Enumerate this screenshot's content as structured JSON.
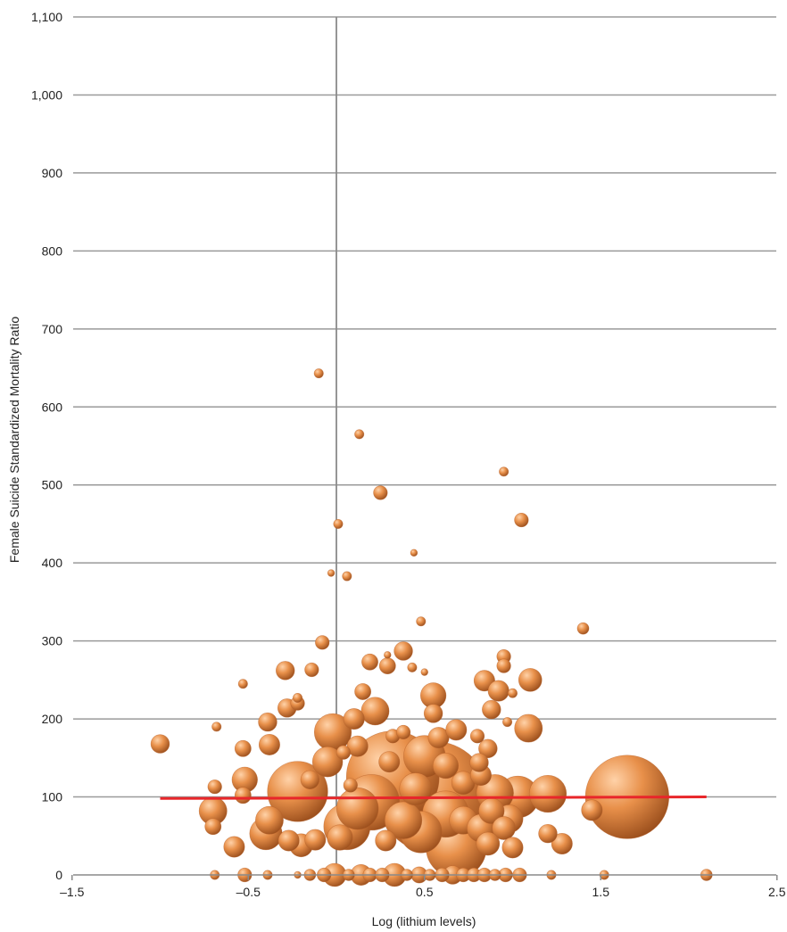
{
  "chart_data": {
    "type": "scatter",
    "style": "bubble",
    "title": "",
    "xlabel": "Log (lithium levels)",
    "ylabel": "Female Suicide Standardized Mortality Ratio",
    "xlim": [
      -1.5,
      2.5
    ],
    "ylim": [
      0,
      1100
    ],
    "xticks": [
      -1.5,
      -0.5,
      0.5,
      1.5,
      2.5
    ],
    "xtick_labels": [
      "–1.5",
      "–0.5",
      "0.5",
      "1.5",
      "2.5"
    ],
    "yticks": [
      0,
      100,
      200,
      300,
      400,
      500,
      600,
      700,
      800,
      900,
      1000,
      1100
    ],
    "ytick_labels": [
      "0",
      "100",
      "200",
      "300",
      "400",
      "500",
      "600",
      "700",
      "800",
      "900",
      "1,000",
      "1,100"
    ],
    "grid": "horizontal",
    "legend": "none",
    "colors": {
      "bubble": "#e8904a",
      "bubble_highlight": "#ffd2a8",
      "bubble_shadow": "#9a4e1c",
      "fit_line": "#e8262a",
      "gridline": "#9a9a9a",
      "zero_line": "#8a8a8a"
    },
    "fit_line": {
      "x": [
        -1.0,
        2.1
      ],
      "y": [
        98,
        100
      ]
    },
    "points": [
      {
        "x": -0.1,
        "y": 643,
        "s": 2
      },
      {
        "x": 0.13,
        "y": 565,
        "s": 2
      },
      {
        "x": 0.95,
        "y": 517,
        "s": 2
      },
      {
        "x": 0.25,
        "y": 490,
        "s": 3
      },
      {
        "x": 1.05,
        "y": 455,
        "s": 3
      },
      {
        "x": 0.01,
        "y": 450,
        "s": 2
      },
      {
        "x": 0.44,
        "y": 413,
        "s": 1.5
      },
      {
        "x": -0.03,
        "y": 387,
        "s": 1.5
      },
      {
        "x": 0.06,
        "y": 383,
        "s": 2
      },
      {
        "x": 0.48,
        "y": 325,
        "s": 2
      },
      {
        "x": 1.4,
        "y": 316,
        "s": 2.5
      },
      {
        "x": -0.08,
        "y": 298,
        "s": 3
      },
      {
        "x": 0.38,
        "y": 287,
        "s": 4
      },
      {
        "x": 0.29,
        "y": 282,
        "s": 1.5
      },
      {
        "x": 0.95,
        "y": 280,
        "s": 3
      },
      {
        "x": 0.19,
        "y": 273,
        "s": 3.5
      },
      {
        "x": 0.29,
        "y": 268,
        "s": 3.5
      },
      {
        "x": 0.43,
        "y": 266,
        "s": 2
      },
      {
        "x": 0.95,
        "y": 268,
        "s": 3
      },
      {
        "x": -0.29,
        "y": 262,
        "s": 4
      },
      {
        "x": -0.14,
        "y": 263,
        "s": 3
      },
      {
        "x": 0.5,
        "y": 260,
        "s": 1.5
      },
      {
        "x": -0.53,
        "y": 245,
        "s": 2
      },
      {
        "x": 0.84,
        "y": 249,
        "s": 4.5
      },
      {
        "x": 1.1,
        "y": 250,
        "s": 5
      },
      {
        "x": 0.92,
        "y": 236,
        "s": 4.5
      },
      {
        "x": 1.0,
        "y": 233,
        "s": 2
      },
      {
        "x": 0.15,
        "y": 235,
        "s": 3.5
      },
      {
        "x": 0.55,
        "y": 230,
        "s": 5.5
      },
      {
        "x": -0.22,
        "y": 227,
        "s": 2
      },
      {
        "x": -0.22,
        "y": 220,
        "s": 3
      },
      {
        "x": -0.28,
        "y": 214,
        "s": 4
      },
      {
        "x": 0.22,
        "y": 210,
        "s": 6
      },
      {
        "x": 0.55,
        "y": 207,
        "s": 4
      },
      {
        "x": 0.88,
        "y": 212,
        "s": 4
      },
      {
        "x": -0.39,
        "y": 196,
        "s": 4
      },
      {
        "x": -0.68,
        "y": 190,
        "s": 2
      },
      {
        "x": -1.0,
        "y": 168,
        "s": 4
      },
      {
        "x": -0.53,
        "y": 162,
        "s": 3.5
      },
      {
        "x": -0.38,
        "y": 167,
        "s": 4.5
      },
      {
        "x": -0.02,
        "y": 183,
        "s": 8
      },
      {
        "x": 0.1,
        "y": 200,
        "s": 4.5
      },
      {
        "x": 0.12,
        "y": 165,
        "s": 4.5
      },
      {
        "x": 0.32,
        "y": 178,
        "s": 3
      },
      {
        "x": 0.38,
        "y": 183,
        "s": 3
      },
      {
        "x": 0.58,
        "y": 176,
        "s": 4.5
      },
      {
        "x": 0.68,
        "y": 186,
        "s": 4.5
      },
      {
        "x": 0.8,
        "y": 178,
        "s": 3
      },
      {
        "x": 0.86,
        "y": 162,
        "s": 4
      },
      {
        "x": 0.97,
        "y": 196,
        "s": 2
      },
      {
        "x": 1.09,
        "y": 188,
        "s": 6
      },
      {
        "x": -0.05,
        "y": 145,
        "s": 6.5
      },
      {
        "x": 0.04,
        "y": 157,
        "s": 3
      },
      {
        "x": 0.3,
        "y": 145,
        "s": 4.5
      },
      {
        "x": 0.5,
        "y": 152,
        "s": 9
      },
      {
        "x": 0.62,
        "y": 140,
        "s": 5.5
      },
      {
        "x": 0.81,
        "y": 144,
        "s": 4
      },
      {
        "x": 0.82,
        "y": 128,
        "s": 4.5
      },
      {
        "x": -0.15,
        "y": 122,
        "s": 4
      },
      {
        "x": -0.69,
        "y": 113,
        "s": 3
      },
      {
        "x": -0.52,
        "y": 122,
        "s": 5.5
      },
      {
        "x": -0.53,
        "y": 102,
        "s": 3.5
      },
      {
        "x": -0.22,
        "y": 107,
        "s": 13
      },
      {
        "x": 0.08,
        "y": 115,
        "s": 3
      },
      {
        "x": 0.32,
        "y": 125,
        "s": 20
      },
      {
        "x": 0.45,
        "y": 110,
        "s": 7
      },
      {
        "x": 0.55,
        "y": 100,
        "s": 24
      },
      {
        "x": 0.72,
        "y": 118,
        "s": 5
      },
      {
        "x": 0.9,
        "y": 105,
        "s": 8
      },
      {
        "x": 1.03,
        "y": 100,
        "s": 9
      },
      {
        "x": 1.2,
        "y": 104,
        "s": 8
      },
      {
        "x": 1.65,
        "y": 100,
        "s": 18
      },
      {
        "x": 1.45,
        "y": 83,
        "s": 4.5
      },
      {
        "x": -0.7,
        "y": 82,
        "s": 6
      },
      {
        "x": -0.7,
        "y": 62,
        "s": 3.5
      },
      {
        "x": -0.38,
        "y": 70,
        "s": 6
      },
      {
        "x": -0.4,
        "y": 53,
        "s": 7
      },
      {
        "x": -0.27,
        "y": 44,
        "s": 4.5
      },
      {
        "x": -0.2,
        "y": 38,
        "s": 5
      },
      {
        "x": -0.12,
        "y": 45,
        "s": 4.5
      },
      {
        "x": -0.58,
        "y": 36,
        "s": 4.5
      },
      {
        "x": 0.02,
        "y": 48,
        "s": 5.5
      },
      {
        "x": 0.06,
        "y": 62,
        "s": 10
      },
      {
        "x": 0.12,
        "y": 85,
        "s": 9
      },
      {
        "x": 0.2,
        "y": 93,
        "s": 12
      },
      {
        "x": 0.28,
        "y": 44,
        "s": 4.5
      },
      {
        "x": 0.38,
        "y": 70,
        "s": 8
      },
      {
        "x": 0.48,
        "y": 55,
        "s": 9
      },
      {
        "x": 0.62,
        "y": 78,
        "s": 10
      },
      {
        "x": 0.68,
        "y": 35,
        "s": 13
      },
      {
        "x": 0.72,
        "y": 70,
        "s": 6
      },
      {
        "x": 0.82,
        "y": 60,
        "s": 6
      },
      {
        "x": 0.88,
        "y": 82,
        "s": 5.5
      },
      {
        "x": 0.95,
        "y": 60,
        "s": 5
      },
      {
        "x": 0.98,
        "y": 72,
        "s": 6
      },
      {
        "x": 0.86,
        "y": 40,
        "s": 5
      },
      {
        "x": 1.0,
        "y": 35,
        "s": 4.5
      },
      {
        "x": 1.2,
        "y": 53,
        "s": 4
      },
      {
        "x": 1.28,
        "y": 40,
        "s": 4.5
      },
      {
        "x": -0.69,
        "y": 0,
        "s": 2
      },
      {
        "x": -0.52,
        "y": 0,
        "s": 3
      },
      {
        "x": -0.39,
        "y": 0,
        "s": 2
      },
      {
        "x": -0.22,
        "y": 0,
        "s": 1.5
      },
      {
        "x": -0.15,
        "y": 0,
        "s": 2.5
      },
      {
        "x": -0.07,
        "y": 0,
        "s": 3
      },
      {
        "x": -0.01,
        "y": 0,
        "s": 5
      },
      {
        "x": 0.07,
        "y": 0,
        "s": 2.5
      },
      {
        "x": 0.14,
        "y": 0,
        "s": 4.5
      },
      {
        "x": 0.19,
        "y": 0,
        "s": 3
      },
      {
        "x": 0.26,
        "y": 0,
        "s": 3
      },
      {
        "x": 0.33,
        "y": 0,
        "s": 5
      },
      {
        "x": 0.4,
        "y": 0,
        "s": 2.5
      },
      {
        "x": 0.47,
        "y": 0,
        "s": 3.5
      },
      {
        "x": 0.53,
        "y": 0,
        "s": 2.5
      },
      {
        "x": 0.6,
        "y": 0,
        "s": 3
      },
      {
        "x": 0.66,
        "y": 0,
        "s": 4
      },
      {
        "x": 0.72,
        "y": 0,
        "s": 3
      },
      {
        "x": 0.78,
        "y": 0,
        "s": 3
      },
      {
        "x": 0.84,
        "y": 0,
        "s": 3
      },
      {
        "x": 0.9,
        "y": 0,
        "s": 2.5
      },
      {
        "x": 0.96,
        "y": 0,
        "s": 3
      },
      {
        "x": 1.04,
        "y": 0,
        "s": 3
      },
      {
        "x": 1.22,
        "y": 0,
        "s": 2
      },
      {
        "x": 1.52,
        "y": 0,
        "s": 2
      },
      {
        "x": 2.1,
        "y": 0,
        "s": 2.5
      }
    ]
  }
}
